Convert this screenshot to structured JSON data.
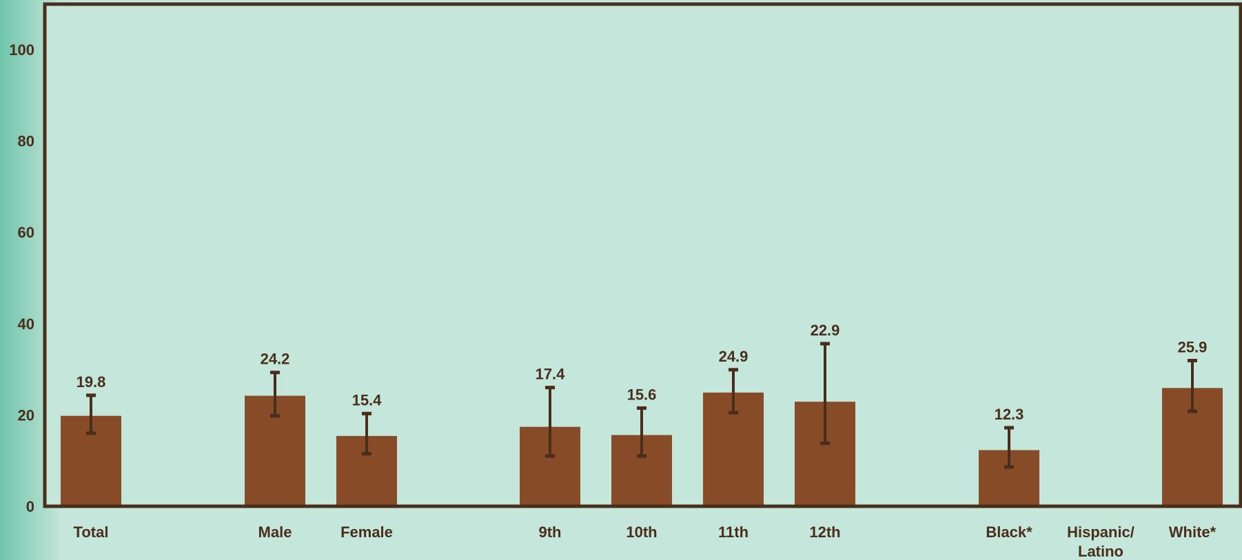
{
  "chart_data": {
    "type": "bar",
    "title": "",
    "xlabel": "",
    "ylabel": "",
    "ylim": [
      0,
      100
    ],
    "yticks": [
      0,
      20,
      40,
      60,
      80,
      100
    ],
    "grid": false,
    "categories": [
      "Total",
      "Male",
      "Female",
      "9th",
      "10th",
      "11th",
      "12th",
      "Black*",
      "Hispanic/ Latino",
      "White*"
    ],
    "values": [
      19.8,
      24.2,
      15.4,
      17.4,
      15.6,
      24.9,
      22.9,
      12.3,
      null,
      25.9
    ],
    "value_labels": [
      "19.8",
      "24.2",
      "15.4",
      "17.4",
      "15.6",
      "24.9",
      "22.9",
      "12.3",
      "",
      "25.9"
    ],
    "error_low": [
      16.0,
      19.8,
      11.5,
      11.0,
      11.0,
      20.5,
      13.8,
      8.6,
      null,
      20.8
    ],
    "error_high": [
      24.3,
      29.3,
      20.3,
      26.0,
      21.5,
      29.9,
      35.6,
      17.2,
      null,
      31.9
    ],
    "colors": {
      "bar": "#874b27",
      "error_bar": "#4a2e1c",
      "frame": "#4a2e1c",
      "plot_bg": "#c5e6da",
      "text": "#4a2e1c"
    }
  }
}
